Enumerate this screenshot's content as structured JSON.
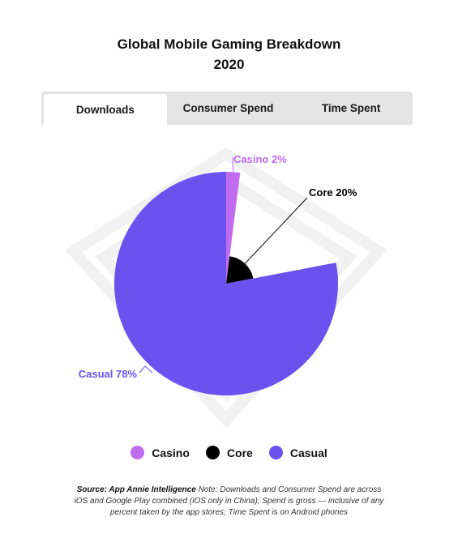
{
  "title_line1": "Global Mobile Gaming Breakdown",
  "title_line2": "2020",
  "tabs": [
    {
      "label": "Downloads",
      "active": true
    },
    {
      "label": "Consumer Spend",
      "active": false
    },
    {
      "label": "Time Spent",
      "active": false
    }
  ],
  "chart_data": {
    "type": "pie",
    "title": "Global Mobile Gaming Breakdown 2020",
    "categories": [
      "Casino",
      "Core",
      "Casual"
    ],
    "values": [
      2,
      20,
      78
    ],
    "colors": [
      "#c06cf0",
      "#000000",
      "#6b52ef"
    ],
    "data_labels": [
      "Casino 2%",
      "Core 20%",
      "Casual 78%"
    ],
    "legend_position": "bottom"
  },
  "legend": [
    {
      "label": "Casino",
      "color": "#c06cf0"
    },
    {
      "label": "Core",
      "color": "#000000"
    },
    {
      "label": "Casual",
      "color": "#6b52ef"
    }
  ],
  "note": {
    "source": "Source: App Annie Intelligence",
    "text": "Note: Downloads and Consumer Spend are across iOS and Google Play combined (iOS only in China); Spend is gross — inclusive of any percent taken by the app stores; Time Spent is on Android phones"
  }
}
